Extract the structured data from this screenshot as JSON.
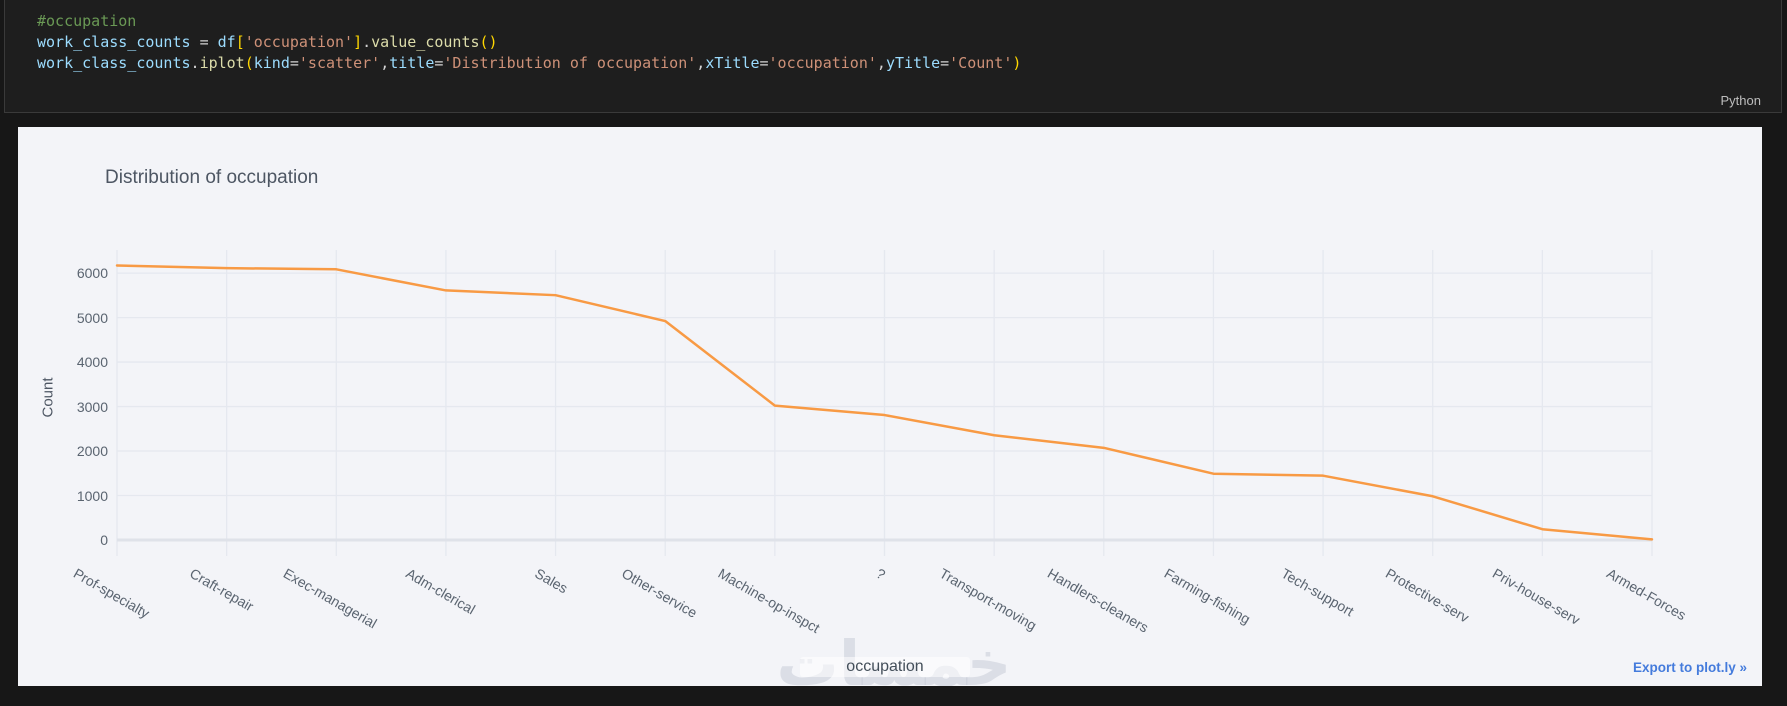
{
  "code_cell": {
    "language_label": "Python",
    "lines": [
      [
        {
          "text": "#occupation",
          "type": "comment"
        }
      ],
      [
        {
          "text": "work_class_counts",
          "type": "variable"
        },
        {
          "text": " ",
          "type": "operator"
        },
        {
          "text": "=",
          "type": "operator"
        },
        {
          "text": " ",
          "type": "operator"
        },
        {
          "text": "df",
          "type": "variable"
        },
        {
          "text": "[",
          "type": "bracket"
        },
        {
          "text": "'occupation'",
          "type": "string"
        },
        {
          "text": "]",
          "type": "bracket"
        },
        {
          "text": ".",
          "type": "operator"
        },
        {
          "text": "value_counts",
          "type": "function"
        },
        {
          "text": "()",
          "type": "bracket"
        }
      ],
      [
        {
          "text": "work_class_counts",
          "type": "variable"
        },
        {
          "text": ".",
          "type": "operator"
        },
        {
          "text": "iplot",
          "type": "function"
        },
        {
          "text": "(",
          "type": "bracket"
        },
        {
          "text": "kind",
          "type": "variable"
        },
        {
          "text": "=",
          "type": "operator"
        },
        {
          "text": "'scatter'",
          "type": "string"
        },
        {
          "text": ",",
          "type": "operator"
        },
        {
          "text": "title",
          "type": "variable"
        },
        {
          "text": "=",
          "type": "operator"
        },
        {
          "text": "'Distribution of occupation'",
          "type": "string"
        },
        {
          "text": ",",
          "type": "operator"
        },
        {
          "text": "xTitle",
          "type": "variable"
        },
        {
          "text": "=",
          "type": "operator"
        },
        {
          "text": "'occupation'",
          "type": "string"
        },
        {
          "text": ",",
          "type": "operator"
        },
        {
          "text": "yTitle",
          "type": "variable"
        },
        {
          "text": "=",
          "type": "operator"
        },
        {
          "text": "'Count'",
          "type": "string"
        },
        {
          "text": ")",
          "type": "bracket"
        }
      ]
    ]
  },
  "chart": {
    "watermark": "خمسات",
    "export_label": "Export to plot.ly »",
    "colors": {
      "card_background": "#F3F4F8",
      "code_background": "#1E1E1E",
      "page_background": "#171717",
      "export_blue": "#447BDC",
      "title_gray": "#4D5663"
    }
  },
  "chart_data": {
    "type": "line",
    "title": "Distribution of occupation",
    "xlabel": "occupation",
    "ylabel": "Count",
    "categories": [
      "Prof-specialty",
      "Craft-repair",
      "Exec-managerial",
      "Adm-clerical",
      "Sales",
      "Other-service",
      "Machine-op-inspct",
      "?",
      "Transport-moving",
      "Handlers-cleaners",
      "Farming-fishing",
      "Tech-support",
      "Protective-serv",
      "Priv-house-serv",
      "Armed-Forces"
    ],
    "values": [
      6172,
      6112,
      6086,
      5611,
      5504,
      4923,
      3022,
      2809,
      2355,
      2072,
      1490,
      1446,
      983,
      242,
      15
    ],
    "yticks": [
      0,
      1000,
      2000,
      3000,
      4000,
      5000,
      6000
    ],
    "ylim": [
      -360,
      6520
    ],
    "grid": true,
    "legend": "none",
    "line_color": "#F89A44",
    "grid_color": "#E5E8EF",
    "zero_line_color": "#DFE2E9",
    "tick_color": "#5A6470"
  }
}
